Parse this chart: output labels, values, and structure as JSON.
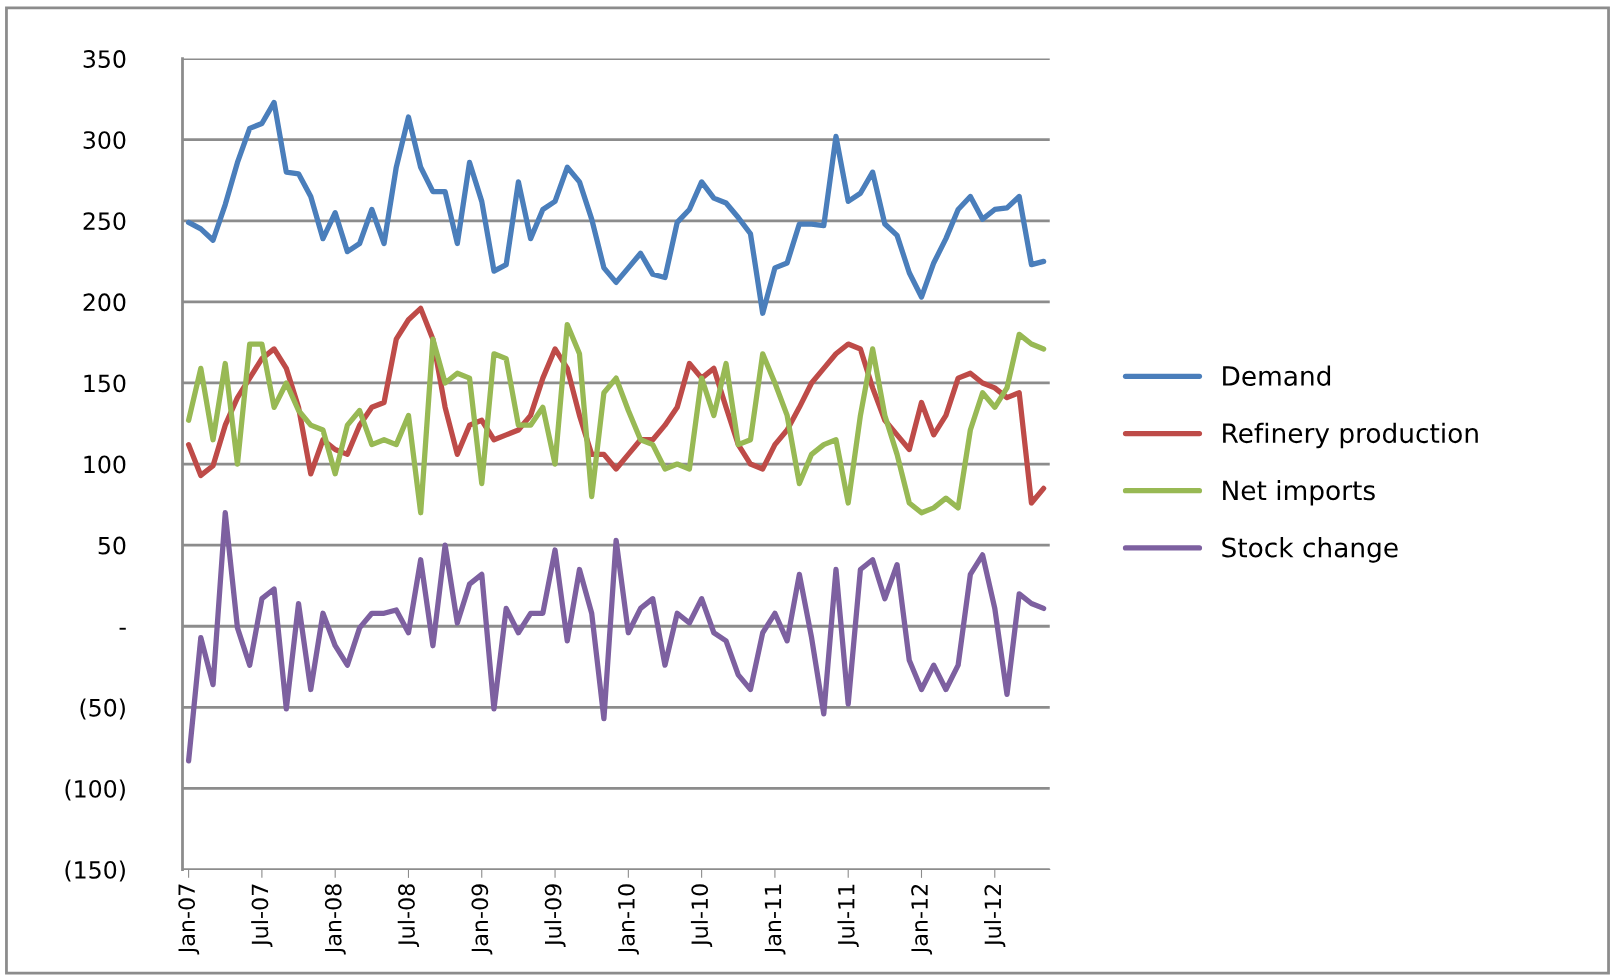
{
  "chart_data": {
    "type": "line",
    "categories": [
      "Jan-07",
      null,
      null,
      null,
      null,
      null,
      "Jul-07",
      null,
      null,
      null,
      null,
      null,
      "Jan-08",
      null,
      null,
      null,
      null,
      null,
      "Jul-08",
      null,
      null,
      null,
      null,
      null,
      "Jan-09",
      null,
      null,
      null,
      null,
      null,
      "Jul-09",
      null,
      null,
      null,
      null,
      null,
      "Jan-10",
      null,
      null,
      null,
      null,
      null,
      "Jul-10",
      null,
      null,
      null,
      null,
      null,
      "Jan-11",
      null,
      null,
      null,
      null,
      null,
      "Jul-11",
      null,
      null,
      null,
      null,
      null,
      "Jan-12",
      null,
      null,
      null,
      null,
      null,
      "Jul-12",
      null,
      null,
      null,
      null
    ],
    "series": [
      {
        "name": "Demand",
        "color": "#4a7ebb",
        "values": [
          249,
          245,
          238,
          260,
          286,
          307,
          310,
          323,
          280,
          279,
          265,
          239,
          255,
          231,
          236,
          257,
          236,
          283,
          314,
          283,
          268,
          268,
          236,
          286,
          262,
          219,
          223,
          274,
          239,
          257,
          262,
          283,
          274,
          251,
          221,
          212,
          221,
          230,
          217,
          215,
          249,
          257,
          274,
          264,
          261,
          252,
          242,
          193,
          221,
          224,
          248,
          248,
          247,
          302,
          262,
          267,
          280,
          248,
          241,
          218,
          203,
          224,
          239,
          257,
          265,
          251,
          257,
          258,
          265,
          223,
          225
        ]
      },
      {
        "name": "Refinery production",
        "color": "#be4b48",
        "values": [
          112,
          93,
          99,
          124,
          141,
          153,
          165,
          171,
          159,
          135,
          94,
          115,
          109,
          106,
          124,
          135,
          138,
          177,
          189,
          196,
          177,
          135,
          106,
          124,
          127,
          115,
          118,
          121,
          130,
          153,
          171,
          159,
          130,
          106,
          106,
          97,
          106,
          115,
          115,
          124,
          135,
          162,
          153,
          159,
          135,
          112,
          100,
          97,
          112,
          121,
          135,
          150,
          159,
          168,
          174,
          171,
          147,
          127,
          118,
          109,
          138,
          118,
          130,
          153,
          156,
          150,
          147,
          141,
          144,
          76,
          85
        ]
      },
      {
        "name": "Net imports",
        "color": "#98b954",
        "values": [
          127,
          159,
          115,
          162,
          100,
          174,
          174,
          135,
          150,
          133,
          124,
          121,
          94,
          124,
          133,
          112,
          115,
          112,
          130,
          70,
          177,
          150,
          156,
          153,
          88,
          168,
          165,
          124,
          124,
          135,
          100,
          186,
          168,
          80,
          144,
          153,
          133,
          115,
          112,
          97,
          100,
          97,
          153,
          130,
          162,
          112,
          115,
          168,
          150,
          130,
          88,
          106,
          112,
          115,
          76,
          130,
          171,
          130,
          106,
          76,
          70,
          73,
          79,
          73,
          121,
          144,
          135,
          147,
          180,
          174,
          171
        ]
      },
      {
        "name": "Stock change",
        "color": "#7d60a0",
        "values": [
          -83,
          -7,
          -36,
          70,
          -1,
          -24,
          17,
          23,
          -51,
          14,
          -39,
          8,
          -12,
          -24,
          -1,
          8,
          8,
          10,
          -4,
          41,
          -12,
          50,
          2,
          26,
          32,
          -51,
          11,
          -4,
          8,
          8,
          47,
          -9,
          35,
          8,
          -57,
          53,
          -4,
          11,
          17,
          -24,
          8,
          2,
          17,
          -4,
          -9,
          -30,
          -39,
          -4,
          8,
          -9,
          32,
          -7,
          -54,
          35,
          -48,
          35,
          41,
          17,
          38,
          -21,
          -39,
          -24,
          -39,
          -24,
          32,
          44,
          11,
          -42,
          20,
          14,
          11
        ]
      }
    ],
    "ylim": [
      -150,
      350
    ],
    "yticks": [
      {
        "value": -150,
        "label": "(150)"
      },
      {
        "value": -100,
        "label": "(100)"
      },
      {
        "value": -50,
        "label": "(50)"
      },
      {
        "value": 0,
        "label": "-"
      },
      50,
      100,
      150,
      200,
      250,
      300,
      350
    ],
    "grid": "y",
    "legend": "right",
    "marker": "none",
    "line_style": "solid"
  }
}
